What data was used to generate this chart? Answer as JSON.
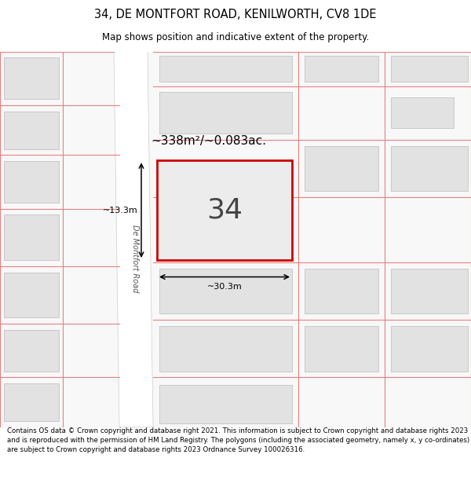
{
  "title": "34, DE MONTFORT ROAD, KENILWORTH, CV8 1DE",
  "subtitle": "Map shows position and indicative extent of the property.",
  "footer": "Contains OS data © Crown copyright and database right 2021. This information is subject to Crown copyright and database rights 2023 and is reproduced with the permission of HM Land Registry. The polygons (including the associated geometry, namely x, y co-ordinates) are subject to Crown copyright and database rights 2023 Ordnance Survey 100026316.",
  "text_color": "#000000",
  "area_label": "~338m²/~0.083ac.",
  "number_label": "34",
  "width_label": "~30.3m",
  "height_label": "~13.3m",
  "road_name": "De Montfort Road",
  "map_bg": "#f8f8f8",
  "road_fill": "#ffffff",
  "plot_line_color": "#e88080",
  "highlight_color": "#cc0000",
  "building_fill": "#e2e2e2",
  "building_stroke": "#c8c8c8"
}
